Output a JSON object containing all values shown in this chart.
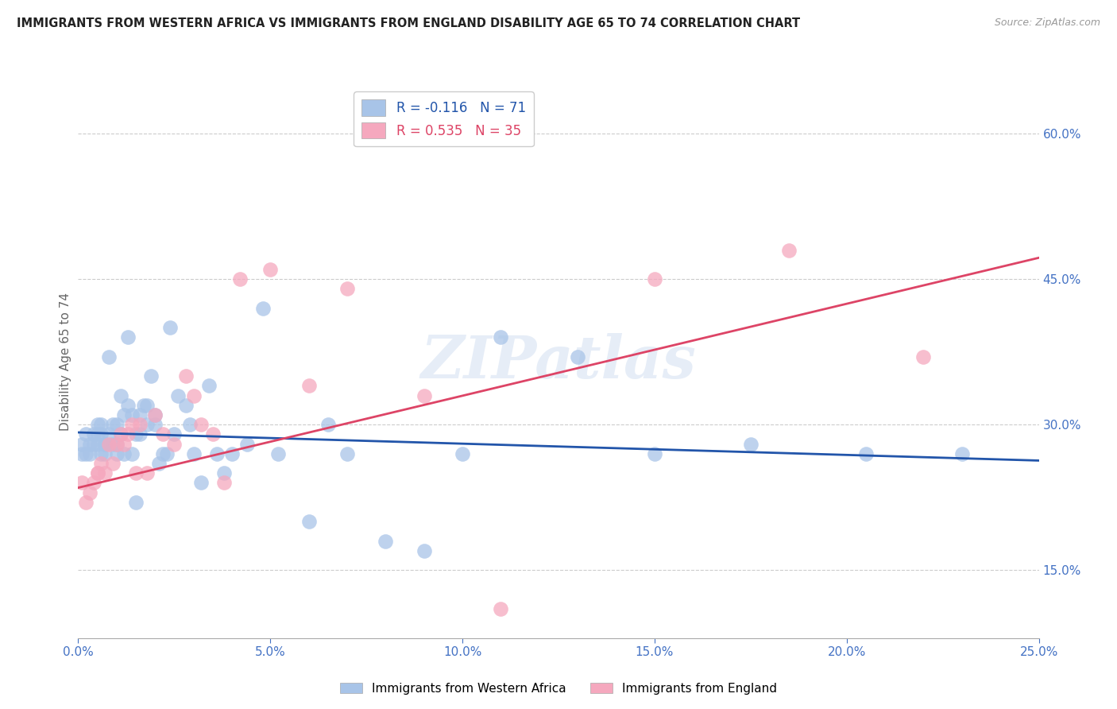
{
  "title": "IMMIGRANTS FROM WESTERN AFRICA VS IMMIGRANTS FROM ENGLAND DISABILITY AGE 65 TO 74 CORRELATION CHART",
  "source": "Source: ZipAtlas.com",
  "ylabel": "Disability Age 65 to 74",
  "legend_labels": [
    "Immigrants from Western Africa",
    "Immigrants from England"
  ],
  "blue_R": -0.116,
  "blue_N": 71,
  "pink_R": 0.535,
  "pink_N": 35,
  "blue_color": "#a8c4e8",
  "pink_color": "#f5a8be",
  "blue_line_color": "#2255aa",
  "pink_line_color": "#dd4466",
  "watermark": "ZIPatlas",
  "xmin": 0.0,
  "xmax": 0.25,
  "ymin": 0.08,
  "ymax": 0.65,
  "yticks": [
    0.15,
    0.3,
    0.45,
    0.6
  ],
  "xticks": [
    0.0,
    0.05,
    0.1,
    0.15,
    0.2,
    0.25
  ],
  "blue_x": [
    0.001,
    0.001,
    0.002,
    0.002,
    0.003,
    0.003,
    0.004,
    0.004,
    0.005,
    0.005,
    0.005,
    0.006,
    0.006,
    0.006,
    0.007,
    0.007,
    0.007,
    0.008,
    0.008,
    0.009,
    0.009,
    0.01,
    0.01,
    0.01,
    0.011,
    0.011,
    0.012,
    0.012,
    0.013,
    0.013,
    0.014,
    0.014,
    0.015,
    0.015,
    0.016,
    0.016,
    0.017,
    0.018,
    0.018,
    0.019,
    0.02,
    0.02,
    0.021,
    0.022,
    0.023,
    0.024,
    0.025,
    0.026,
    0.028,
    0.029,
    0.03,
    0.032,
    0.034,
    0.036,
    0.038,
    0.04,
    0.044,
    0.048,
    0.052,
    0.06,
    0.065,
    0.07,
    0.08,
    0.09,
    0.1,
    0.11,
    0.13,
    0.15,
    0.175,
    0.205,
    0.23
  ],
  "blue_y": [
    0.28,
    0.27,
    0.29,
    0.27,
    0.28,
    0.27,
    0.29,
    0.28,
    0.29,
    0.28,
    0.3,
    0.29,
    0.27,
    0.3,
    0.28,
    0.27,
    0.28,
    0.29,
    0.37,
    0.28,
    0.3,
    0.28,
    0.3,
    0.27,
    0.33,
    0.29,
    0.31,
    0.27,
    0.32,
    0.39,
    0.31,
    0.27,
    0.22,
    0.29,
    0.31,
    0.29,
    0.32,
    0.32,
    0.3,
    0.35,
    0.31,
    0.3,
    0.26,
    0.27,
    0.27,
    0.4,
    0.29,
    0.33,
    0.32,
    0.3,
    0.27,
    0.24,
    0.34,
    0.27,
    0.25,
    0.27,
    0.28,
    0.42,
    0.27,
    0.2,
    0.3,
    0.27,
    0.18,
    0.17,
    0.27,
    0.39,
    0.37,
    0.27,
    0.28,
    0.27,
    0.27
  ],
  "pink_x": [
    0.001,
    0.002,
    0.003,
    0.004,
    0.005,
    0.005,
    0.006,
    0.007,
    0.008,
    0.009,
    0.01,
    0.011,
    0.012,
    0.013,
    0.014,
    0.015,
    0.016,
    0.018,
    0.02,
    0.022,
    0.025,
    0.028,
    0.03,
    0.032,
    0.035,
    0.038,
    0.042,
    0.05,
    0.06,
    0.07,
    0.09,
    0.11,
    0.15,
    0.185,
    0.22
  ],
  "pink_y": [
    0.24,
    0.22,
    0.23,
    0.24,
    0.25,
    0.25,
    0.26,
    0.25,
    0.28,
    0.26,
    0.28,
    0.29,
    0.28,
    0.29,
    0.3,
    0.25,
    0.3,
    0.25,
    0.31,
    0.29,
    0.28,
    0.35,
    0.33,
    0.3,
    0.29,
    0.24,
    0.45,
    0.46,
    0.34,
    0.44,
    0.33,
    0.11,
    0.45,
    0.48,
    0.37
  ],
  "blue_trend_x": [
    0.0,
    0.25
  ],
  "blue_trend_y": [
    0.292,
    0.263
  ],
  "pink_trend_x": [
    0.0,
    0.25
  ],
  "pink_trend_y": [
    0.235,
    0.472
  ],
  "background_color": "#ffffff",
  "grid_color": "#cccccc",
  "title_color": "#222222",
  "tick_color": "#4472c4"
}
